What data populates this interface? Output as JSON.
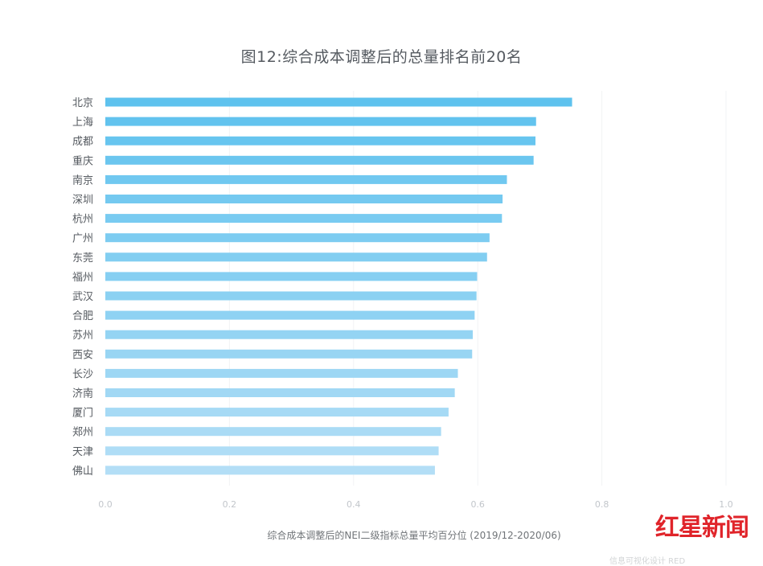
{
  "chart_data": {
    "type": "bar",
    "orientation": "horizontal",
    "title": "图12:综合成本调整后的总量排名前20名",
    "xlabel": "综合成本调整后的NEI二级指标总量平均百分位 (2019/12-2020/06)",
    "ylabel": "",
    "xlim": [
      0,
      1.0
    ],
    "xticks": [
      "0.0",
      "0.2",
      "0.4",
      "0.6",
      "0.8",
      "1.0"
    ],
    "grid": true,
    "categories": [
      "北京",
      "上海",
      "成都",
      "重庆",
      "南京",
      "深圳",
      "杭州",
      "广州",
      "东莞",
      "福州",
      "武汉",
      "合肥",
      "苏州",
      "西安",
      "长沙",
      "济南",
      "厦门",
      "郑州",
      "天津",
      "佛山"
    ],
    "values": [
      0.752,
      0.694,
      0.693,
      0.69,
      0.647,
      0.64,
      0.639,
      0.619,
      0.615,
      0.599,
      0.598,
      0.595,
      0.592,
      0.591,
      0.568,
      0.563,
      0.553,
      0.541,
      0.537,
      0.531
    ],
    "colors": {
      "top": "#5ec2ee",
      "bottom": "#b3def6",
      "grid": "#f2f3f4",
      "tick": "#c2c6cb"
    }
  },
  "watermark": {
    "logo_text": "红星新闻",
    "credit": "信息可视化设计 RED"
  }
}
